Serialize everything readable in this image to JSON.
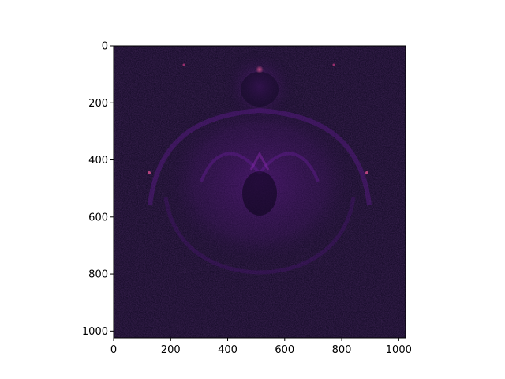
{
  "chart_data": {
    "type": "heatmap",
    "title": "",
    "xlabel": "",
    "ylabel": "",
    "image_size": [
      1024,
      1024
    ],
    "xlim": [
      0,
      1024
    ],
    "ylim": [
      1024,
      0
    ],
    "y_inverted": true,
    "grid": false,
    "legend": "none",
    "colormap": "magma",
    "x_ticks": [
      0,
      200,
      400,
      600,
      800,
      1000
    ],
    "y_ticks": [
      0,
      200,
      400,
      600,
      800,
      1000
    ],
    "x_tick_labels": [
      "0",
      "200",
      "400",
      "600",
      "800",
      "1000"
    ],
    "y_tick_labels": [
      "0",
      "200",
      "400",
      "600",
      "800",
      "1000"
    ],
    "colors": {
      "background": "#0e0720",
      "glow": "#6a1a9a",
      "hot": "#b5367a"
    },
    "content": "Buddhabrot-style fractal density (mostly dark, faint purple structure centered near x≈512)"
  }
}
